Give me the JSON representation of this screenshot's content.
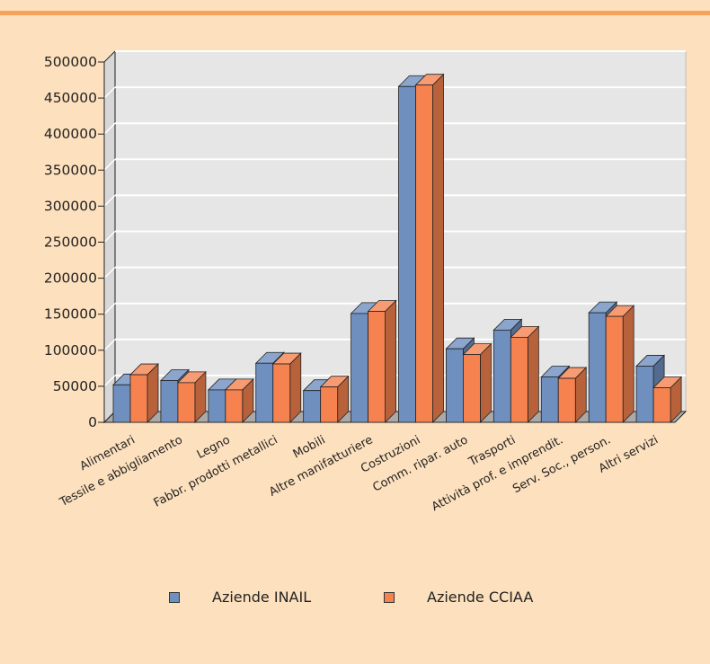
{
  "chart_data": {
    "type": "bar",
    "categories": [
      "Alimentari",
      "Tessile e abbigliamento",
      "Legno",
      "Fabbr. prodotti metallici",
      "Mobili",
      "Altre manifatturiere",
      "Costruzioni",
      "Comm. ripar. auto",
      "Trasporti",
      "Attività prof. e imprendit.",
      "Serv. Soc., person.",
      "Altri servizi"
    ],
    "series": [
      {
        "name": "Aziende INAIL",
        "color": "#6f8fbf",
        "values": [
          52000,
          58000,
          45000,
          82000,
          44000,
          151000,
          466000,
          102000,
          128000,
          63000,
          152000,
          78000
        ]
      },
      {
        "name": "Aziende CCIAA",
        "color": "#f5824f",
        "values": [
          66000,
          55000,
          45000,
          81000,
          49000,
          154000,
          468000,
          94000,
          118000,
          61000,
          147000,
          48000
        ]
      }
    ],
    "yticks": [
      "0",
      "50000",
      "100000",
      "150000",
      "200000",
      "250000",
      "300000",
      "350000",
      "400000",
      "450000",
      "500000"
    ],
    "ylim": [
      0,
      500000
    ],
    "grid": true,
    "legend_position": "bottom",
    "title": "",
    "xlabel": "",
    "ylabel": ""
  }
}
